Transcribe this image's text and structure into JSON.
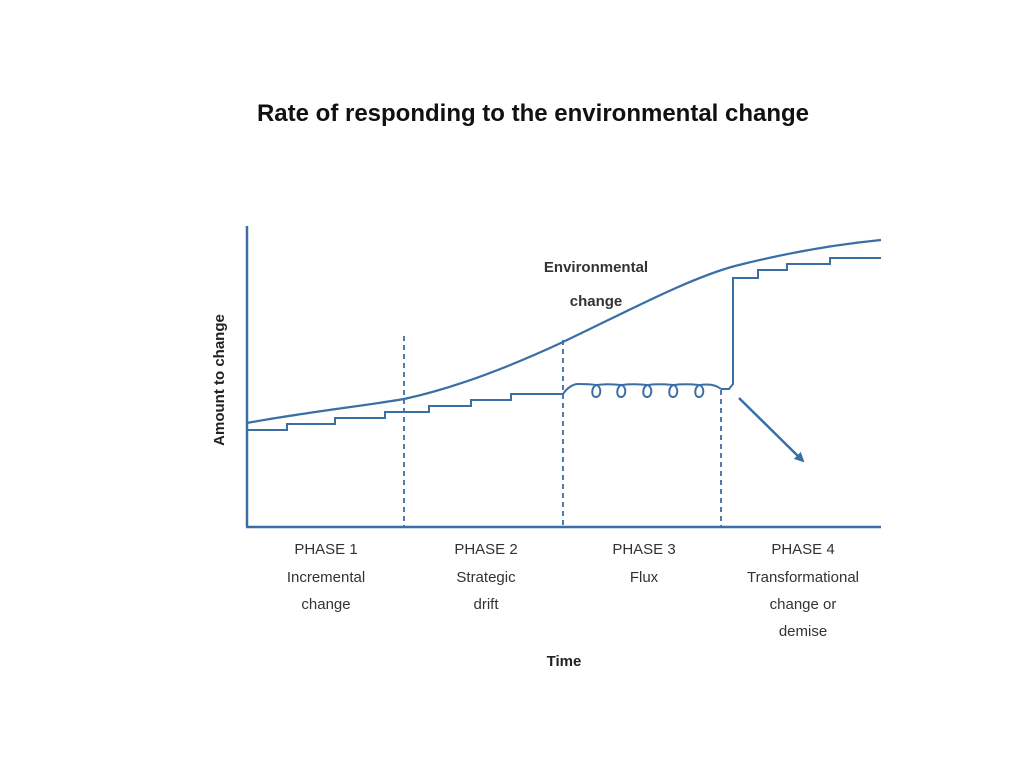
{
  "title": "Rate of responding to the environmental change",
  "axes": {
    "y_label": "Amount to change",
    "x_label": "Time"
  },
  "curves": {
    "environmental_label_line1": "Environmental",
    "environmental_label_line2": "change"
  },
  "phases": [
    {
      "heading": "PHASE 1",
      "lines": [
        "Incremental",
        "change"
      ]
    },
    {
      "heading": "PHASE 2",
      "lines": [
        "Strategic",
        "drift"
      ]
    },
    {
      "heading": "PHASE 3",
      "lines": [
        "Flux"
      ]
    },
    {
      "heading": "PHASE 4",
      "lines": [
        "Transformational",
        "change or",
        "demise"
      ]
    }
  ],
  "colors": {
    "line": "#3a6ea5",
    "text": "#333333"
  }
}
